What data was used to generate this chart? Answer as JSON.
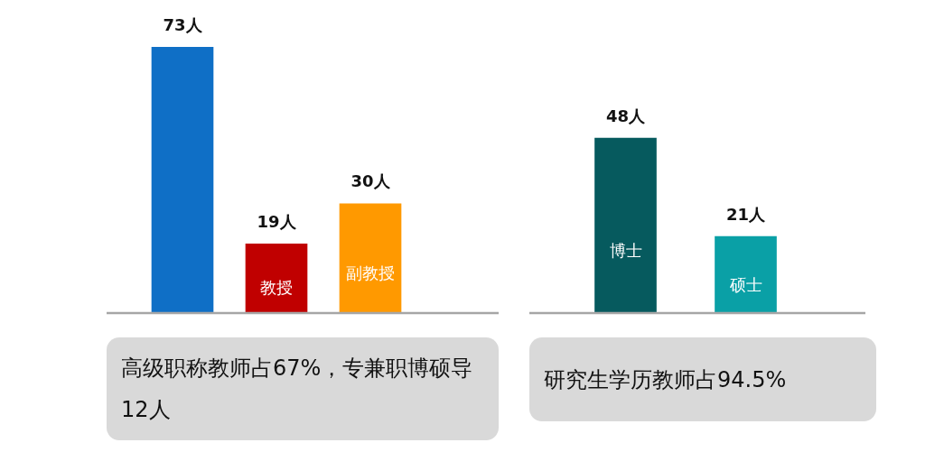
{
  "chart_data": [
    {
      "type": "bar",
      "categories": [
        null,
        "教授",
        "副教授"
      ],
      "values": [
        73,
        19,
        30
      ],
      "colors": [
        "#0f6fc6",
        "#c00000",
        "#ff9900"
      ],
      "value_labels": [
        "73人",
        "19人",
        "30人"
      ],
      "annotations": [
        "高级职称教师占67%，专兼职博硕导 12人"
      ]
    },
    {
      "type": "bar",
      "categories": [
        "博士",
        "硕士"
      ],
      "values": [
        48,
        21
      ],
      "colors": [
        "#065a5e",
        "#0aa0a6"
      ],
      "value_labels": [
        "48人",
        "21人"
      ],
      "annotations": [
        "研究生学历教师占94.5%"
      ]
    }
  ]
}
